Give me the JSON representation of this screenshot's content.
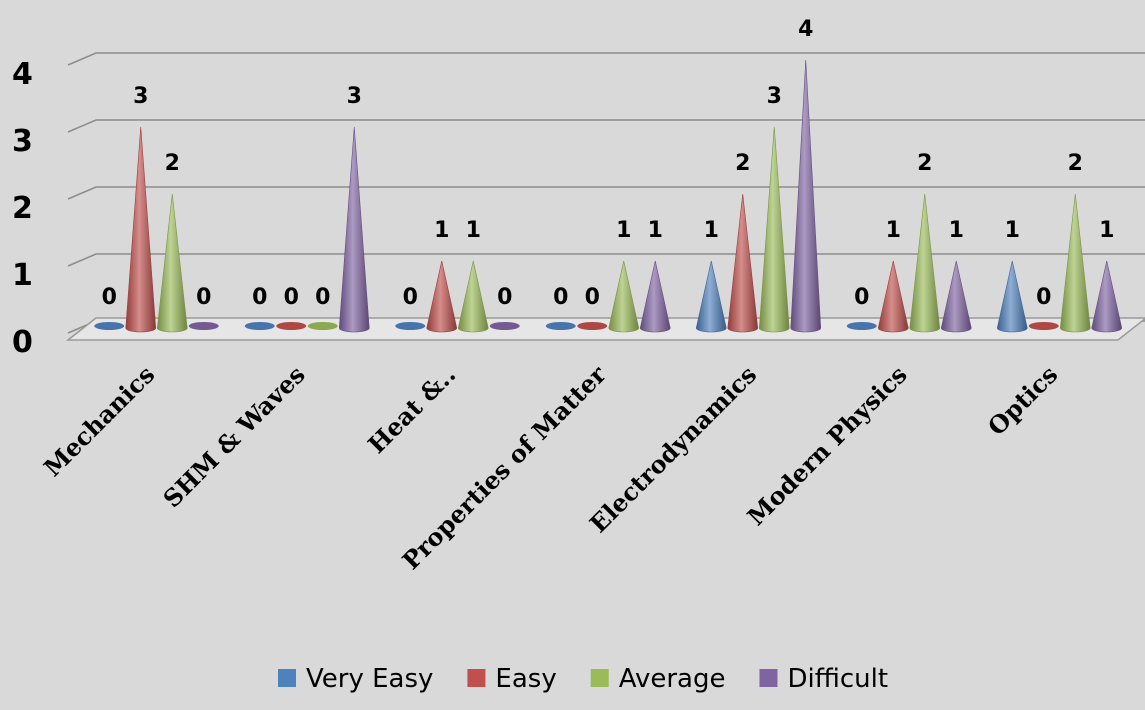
{
  "chart_data": {
    "type": "bar",
    "shape": "cone-3d",
    "categories": [
      "Mechanics",
      "SHM & Waves",
      "Heat &..",
      "Properties of Matter",
      "Electrodynamics",
      "Modern Physics",
      "Optics"
    ],
    "series": [
      {
        "name": "Very Easy",
        "color": "#4f81bd",
        "values": [
          0,
          0,
          0,
          0,
          1,
          0,
          1
        ]
      },
      {
        "name": "Easy",
        "color": "#c0504d",
        "values": [
          3,
          0,
          1,
          0,
          2,
          1,
          0
        ]
      },
      {
        "name": "Average",
        "color": "#9bbb59",
        "values": [
          2,
          0,
          1,
          1,
          3,
          2,
          2
        ]
      },
      {
        "name": "Difficult",
        "color": "#8064a2",
        "values": [
          0,
          3,
          0,
          1,
          4,
          1,
          1
        ]
      }
    ],
    "yticks": [
      "0",
      "1",
      "2",
      "3",
      "4"
    ],
    "ylim": [
      0,
      4
    ],
    "grid": true,
    "legend_position": "bottom",
    "title": "",
    "xlabel": "",
    "ylabel": ""
  }
}
